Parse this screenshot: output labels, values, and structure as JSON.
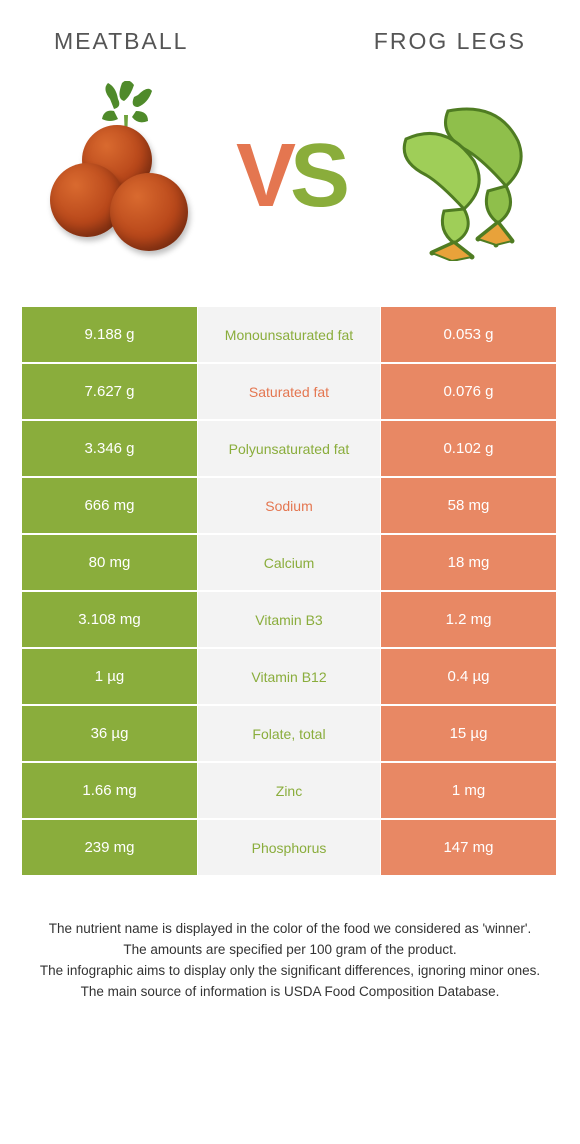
{
  "colors": {
    "green": "#8aad3c",
    "orange": "#e88864",
    "mid_bg": "#f3f3f3",
    "mid_green_text": "#8aad3c",
    "mid_orange_text": "#e47650",
    "bg": "#ffffff"
  },
  "food_left": {
    "title": "Meatball"
  },
  "food_right": {
    "title": "Frog legs"
  },
  "vs": {
    "v": "V",
    "s": "S"
  },
  "rows": [
    {
      "left": "9.188 g",
      "label": "Monounsaturated fat",
      "winner": "green",
      "right": "0.053 g"
    },
    {
      "left": "7.627 g",
      "label": "Saturated fat",
      "winner": "orange",
      "right": "0.076 g"
    },
    {
      "left": "3.346 g",
      "label": "Polyunsaturated fat",
      "winner": "green",
      "right": "0.102 g"
    },
    {
      "left": "666 mg",
      "label": "Sodium",
      "winner": "orange",
      "right": "58 mg"
    },
    {
      "left": "80 mg",
      "label": "Calcium",
      "winner": "green",
      "right": "18 mg"
    },
    {
      "left": "3.108 mg",
      "label": "Vitamin B3",
      "winner": "green",
      "right": "1.2 mg"
    },
    {
      "left": "1 µg",
      "label": "Vitamin B12",
      "winner": "green",
      "right": "0.4 µg"
    },
    {
      "left": "36 µg",
      "label": "Folate, total",
      "winner": "green",
      "right": "15 µg"
    },
    {
      "left": "1.66 mg",
      "label": "Zinc",
      "winner": "green",
      "right": "1 mg"
    },
    {
      "left": "239 mg",
      "label": "Phosphorus",
      "winner": "green",
      "right": "147 mg"
    }
  ],
  "footer": {
    "l1": "The nutrient name is displayed in the color of the food we considered as 'winner'.",
    "l2": "The amounts are specified per 100 gram of the product.",
    "l3": "The infographic aims to display only the significant differences, ignoring minor ones.",
    "l4": "The main source of information is USDA Food Composition Database."
  }
}
